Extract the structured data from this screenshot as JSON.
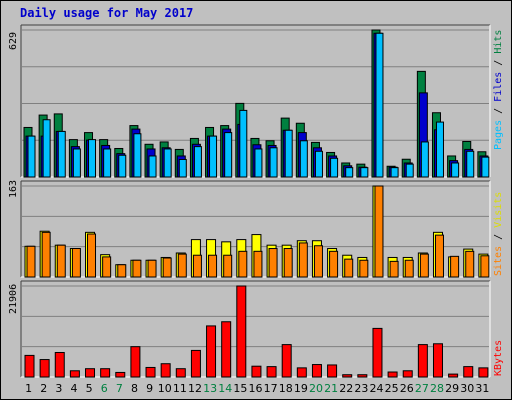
{
  "chart_data": [
    {
      "type": "bar",
      "title": "Daily usage for May 2017",
      "ymax_label": "629",
      "ylim": [
        0,
        629
      ],
      "legend": [
        {
          "name": "Pages",
          "color": "#00c0ff"
        },
        {
          "name": "Files",
          "color": "#0000cc"
        },
        {
          "name": "Hits",
          "color": "#008040"
        }
      ],
      "categories": [
        "1",
        "2",
        "3",
        "4",
        "5",
        "6",
        "7",
        "8",
        "9",
        "10",
        "11",
        "12",
        "13",
        "14",
        "15",
        "16",
        "17",
        "18",
        "19",
        "20",
        "21",
        "22",
        "23",
        "24",
        "25",
        "26",
        "27",
        "28",
        "29",
        "30",
        "31"
      ],
      "series": [
        {
          "name": "Hits",
          "color": "#008040",
          "values": [
            212,
            265,
            270,
            160,
            190,
            160,
            122,
            220,
            140,
            150,
            118,
            165,
            212,
            220,
            315,
            165,
            155,
            252,
            230,
            148,
            105,
            60,
            55,
            629,
            46,
            76,
            452,
            275,
            90,
            152,
            108
          ]
        },
        {
          "name": "Files",
          "color": "#0000cc",
          "values": [
            175,
            175,
            195,
            130,
            158,
            135,
            100,
            205,
            120,
            125,
            90,
            140,
            175,
            205,
            225,
            138,
            135,
            200,
            190,
            125,
            90,
            48,
            42,
            615,
            42,
            60,
            360,
            202,
            70,
            118,
            90
          ]
        },
        {
          "name": "Pages",
          "color": "#00c0ff",
          "values": [
            175,
            245,
            195,
            120,
            160,
            120,
            93,
            185,
            90,
            120,
            75,
            130,
            175,
            190,
            285,
            120,
            125,
            200,
            155,
            110,
            80,
            40,
            40,
            615,
            40,
            55,
            150,
            235,
            60,
            110,
            85
          ]
        }
      ]
    },
    {
      "type": "bar",
      "ymax_label": "163",
      "ylim": [
        0,
        163
      ],
      "legend": [
        {
          "name": "Sites",
          "color": "#ff8000"
        },
        {
          "name": "Visits",
          "color": "#ffff00"
        }
      ],
      "series": [
        {
          "name": "Visits",
          "color": "#ffff00",
          "values": [
            55,
            82,
            57,
            51,
            80,
            40,
            22,
            30,
            30,
            35,
            43,
            67,
            67,
            63,
            67,
            76,
            57,
            57,
            65,
            65,
            51,
            39,
            35,
            163,
            35,
            35,
            43,
            80,
            36,
            50,
            41
          ]
        },
        {
          "name": "Sites",
          "color": "#ff8000",
          "values": [
            55,
            80,
            57,
            51,
            77,
            36,
            22,
            30,
            30,
            34,
            41,
            39,
            39,
            39,
            46,
            46,
            51,
            51,
            61,
            56,
            46,
            32,
            30,
            163,
            28,
            30,
            41,
            75,
            37,
            46,
            38
          ]
        }
      ]
    },
    {
      "type": "bar",
      "ymax_label": "21906",
      "ylim": [
        0,
        21906
      ],
      "legend": [
        {
          "name": "KBytes",
          "color": "#ff0000"
        }
      ],
      "series": [
        {
          "name": "KBytes",
          "color": "#ff0000",
          "values": [
            5200,
            4200,
            5900,
            1500,
            2000,
            2000,
            1100,
            7300,
            2300,
            3200,
            2000,
            6400,
            12300,
            13300,
            21906,
            2600,
            2500,
            7800,
            2200,
            3000,
            2900,
            550,
            550,
            11700,
            1200,
            1500,
            7800,
            8000,
            700,
            2500,
            2200
          ]
        }
      ]
    }
  ],
  "day_colors": [
    "#000000",
    "#000000",
    "#000000",
    "#000000",
    "#000000",
    "#008040",
    "#008040",
    "#000000",
    "#000000",
    "#000000",
    "#000000",
    "#000000",
    "#008040",
    "#008040",
    "#000000",
    "#000000",
    "#000000",
    "#000000",
    "#000000",
    "#008040",
    "#008040",
    "#000000",
    "#000000",
    "#000000",
    "#000000",
    "#000000",
    "#008040",
    "#008040",
    "#000000",
    "#000000",
    "#000000"
  ]
}
